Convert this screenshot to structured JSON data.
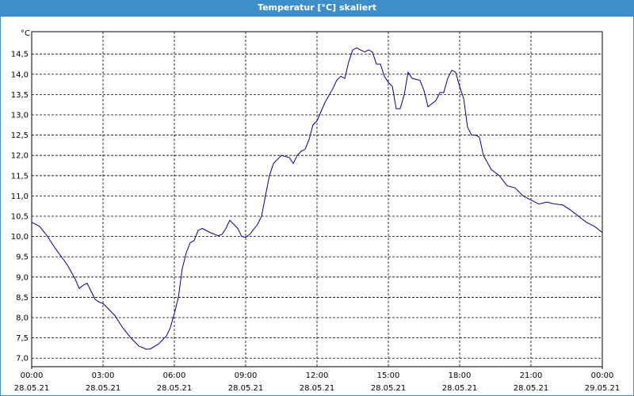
{
  "window_title": "Temperatur [°C] skaliert",
  "chart_data": {
    "type": "line",
    "y_label": "°C",
    "xlim": [
      0,
      24
    ],
    "ylim": [
      6.79,
      15.05
    ],
    "grid": true,
    "yticks": [
      {
        "value": 7.0,
        "label": "7,0"
      },
      {
        "value": 7.5,
        "label": "7,5"
      },
      {
        "value": 8.0,
        "label": "8,0"
      },
      {
        "value": 8.5,
        "label": "8,5"
      },
      {
        "value": 9.0,
        "label": "9,0"
      },
      {
        "value": 9.5,
        "label": "9,5"
      },
      {
        "value": 10.0,
        "label": "10,0"
      },
      {
        "value": 10.5,
        "label": "10,5"
      },
      {
        "value": 11.0,
        "label": "11,0"
      },
      {
        "value": 11.5,
        "label": "11,5"
      },
      {
        "value": 12.0,
        "label": "12,0"
      },
      {
        "value": 12.5,
        "label": "12,5"
      },
      {
        "value": 13.0,
        "label": "13,0"
      },
      {
        "value": 13.5,
        "label": "13,5"
      },
      {
        "value": 14.0,
        "label": "14,0"
      },
      {
        "value": 14.5,
        "label": "14,5"
      }
    ],
    "xticks": [
      {
        "value": 0,
        "label": [
          "00:00",
          "28.05.21"
        ]
      },
      {
        "value": 3,
        "label": [
          "03:00",
          "28.05.21"
        ]
      },
      {
        "value": 6,
        "label": [
          "06:00",
          "28.05.21"
        ]
      },
      {
        "value": 9,
        "label": [
          "09:00",
          "28.05.21"
        ]
      },
      {
        "value": 12,
        "label": [
          "12:00",
          "28.05.21"
        ]
      },
      {
        "value": 15,
        "label": [
          "15:00",
          "28.05.21"
        ]
      },
      {
        "value": 18,
        "label": [
          "18:00",
          "28.05.21"
        ]
      },
      {
        "value": 21,
        "label": [
          "21:00",
          "28.05.21"
        ]
      },
      {
        "value": 24,
        "label": [
          "00:00",
          "29.05.21"
        ]
      }
    ],
    "x": [
      0,
      0.33,
      0.67,
      1.0,
      1.5,
      1.83,
      2.0,
      2.17,
      2.33,
      2.5,
      2.67,
      2.83,
      3.0,
      3.17,
      3.5,
      3.83,
      4.17,
      4.5,
      4.83,
      5.0,
      5.33,
      5.67,
      5.83,
      6.0,
      6.17,
      6.33,
      6.5,
      6.67,
      6.83,
      7.0,
      7.17,
      7.5,
      7.83,
      8.0,
      8.17,
      8.33,
      8.5,
      8.67,
      8.83,
      9.0,
      9.17,
      9.5,
      9.67,
      9.83,
      10.0,
      10.17,
      10.5,
      10.83,
      11.0,
      11.17,
      11.33,
      11.5,
      11.67,
      11.83,
      12.0,
      12.33,
      12.67,
      12.83,
      13.0,
      13.17,
      13.33,
      13.5,
      13.67,
      13.83,
      14.0,
      14.17,
      14.33,
      14.5,
      14.67,
      14.83,
      15.0,
      15.17,
      15.33,
      15.5,
      15.67,
      15.83,
      16.0,
      16.33,
      16.5,
      16.67,
      17.0,
      17.17,
      17.33,
      17.5,
      17.67,
      17.83,
      18.0,
      18.17,
      18.33,
      18.5,
      18.67,
      18.83,
      19.0,
      19.33,
      19.67,
      20.0,
      20.33,
      20.67,
      21.0,
      21.33,
      21.67,
      22.0,
      22.33,
      22.67,
      23.0,
      23.33,
      23.67,
      24.0
    ],
    "series": [
      {
        "color": "#00008b",
        "values": [
          10.35,
          10.25,
          10.0,
          9.7,
          9.3,
          8.95,
          8.72,
          8.8,
          8.85,
          8.65,
          8.45,
          8.38,
          8.35,
          8.25,
          8.05,
          7.75,
          7.5,
          7.3,
          7.22,
          7.23,
          7.35,
          7.55,
          7.75,
          8.1,
          8.5,
          9.2,
          9.6,
          9.85,
          9.9,
          10.15,
          10.2,
          10.1,
          10.02,
          10.05,
          10.2,
          10.4,
          10.3,
          10.2,
          10.0,
          9.98,
          10.05,
          10.3,
          10.5,
          11.0,
          11.5,
          11.8,
          12.0,
          11.95,
          11.8,
          12.0,
          12.1,
          12.15,
          12.4,
          12.75,
          12.85,
          13.3,
          13.65,
          13.85,
          13.95,
          13.9,
          14.3,
          14.6,
          14.65,
          14.6,
          14.55,
          14.6,
          14.55,
          14.25,
          14.25,
          13.95,
          13.8,
          13.7,
          13.15,
          13.15,
          13.5,
          14.05,
          13.9,
          13.85,
          13.6,
          13.2,
          13.35,
          13.55,
          13.55,
          13.9,
          14.1,
          14.05,
          13.7,
          13.4,
          12.7,
          12.5,
          12.5,
          12.45,
          12.0,
          11.65,
          11.5,
          11.25,
          11.2,
          11.0,
          10.9,
          10.8,
          10.85,
          10.8,
          10.78,
          10.65,
          10.5,
          10.35,
          10.25,
          10.1
        ]
      }
    ]
  }
}
